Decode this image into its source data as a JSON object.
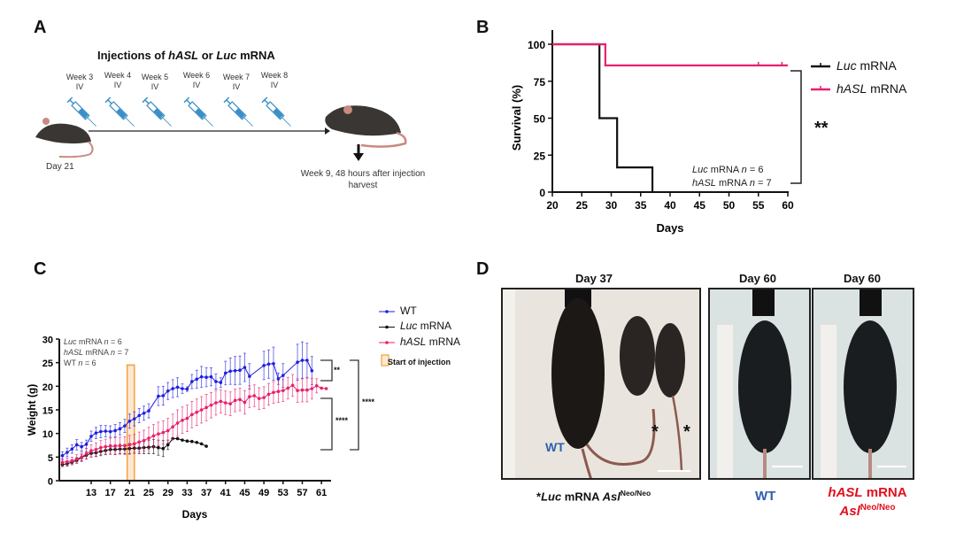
{
  "panels": {
    "a": "A",
    "b": "B",
    "c": "C",
    "d": "D"
  },
  "panel_a": {
    "title": {
      "pre": "Injections of ",
      "gene1": "hASL",
      "mid": " or ",
      "gene2": "Luc",
      "post": " mRNA"
    },
    "weeks": [
      {
        "week": "Week 3",
        "route": "IV"
      },
      {
        "week": "Week 4",
        "route": "IV"
      },
      {
        "week": "Week 5",
        "route": "IV"
      },
      {
        "week": "Week 6",
        "route": "IV"
      },
      {
        "week": "Week 7",
        "route": "IV"
      },
      {
        "week": "Week 8",
        "route": "IV"
      }
    ],
    "start_label": "Day 21",
    "end_label_1": "Week 9, 48 hours after injection",
    "end_label_2": "harvest",
    "colors": {
      "syringe": "#3b8fc7",
      "mouse": "#3a3633",
      "tail": "#c98a80"
    }
  },
  "panel_d": {
    "titles": [
      "Day 37",
      "Day 60",
      "Day 60"
    ],
    "wt_in_photo": "WT",
    "asterisk": "*",
    "caption_luc": {
      "star": "*",
      "gene": "Luc",
      "mid": " mRNA ",
      "allele": "Asl",
      "sup": "Neo/Neo"
    },
    "caption_wt": "WT",
    "caption_hasl": {
      "gene": "hASL",
      "mid": " mRNA",
      "allele": "Asl",
      "sup": "Neo/Neo"
    },
    "colors": {
      "wt": "#2e5fb0",
      "hasl": "#e0101e"
    }
  },
  "chart_data": [
    {
      "type": "line",
      "subtype": "kaplan-meier",
      "xlabel": "Days",
      "ylabel": "Survival (%)",
      "xlim": [
        20,
        60
      ],
      "ylim": [
        0,
        100
      ],
      "xticks": [
        20,
        25,
        30,
        35,
        40,
        45,
        50,
        55,
        60
      ],
      "yticks": [
        0,
        25,
        50,
        75,
        100
      ],
      "legend_position": "right",
      "series": [
        {
          "name": "Luc mRNA",
          "gene": "Luc",
          "suffix": " mRNA",
          "color": "#111111",
          "steps": [
            [
              20,
              100
            ],
            [
              28,
              100
            ],
            [
              28,
              50
            ],
            [
              31,
              50
            ],
            [
              31,
              16.7
            ],
            [
              37,
              16.7
            ],
            [
              37,
              0
            ]
          ],
          "censored": []
        },
        {
          "name": "hASL mRNA",
          "gene": "hASL",
          "suffix": " mRNA",
          "color": "#e8206e",
          "steps": [
            [
              20,
              100
            ],
            [
              29,
              100
            ],
            [
              29,
              85.7
            ],
            [
              60,
              85.7
            ]
          ],
          "censored": [
            55,
            59
          ]
        }
      ],
      "annotations": {
        "n_lines": [
          {
            "gene": "Luc",
            "mid": " mRNA ",
            "n": "n",
            "eq": " = 6"
          },
          {
            "gene": "hASL",
            "mid": " mRNA ",
            "n": "n",
            "eq": " = 7"
          }
        ],
        "significance": "**"
      }
    },
    {
      "type": "line",
      "xlabel": "Days",
      "ylabel": "Weight (g)",
      "xlim": [
        6.5,
        63
      ],
      "ylim": [
        0,
        30
      ],
      "xticks": [
        13,
        17,
        21,
        25,
        29,
        33,
        37,
        41,
        45,
        49,
        53,
        57,
        61
      ],
      "yticks": [
        0,
        5,
        10,
        15,
        20,
        25,
        30
      ],
      "legend_position": "top-right",
      "injection_start": {
        "label": "Start of injection",
        "day_range": [
          20.5,
          22
        ],
        "color": "#f2a23c",
        "fill": "#fde8d2"
      },
      "annotations": {
        "n_lines": [
          {
            "gene": "Luc",
            "mid": " mRNA ",
            "n": "n",
            "eq": " = 6"
          },
          {
            "gene": "hASL",
            "mid": " mRNA ",
            "n": "n",
            "eq": " = 7"
          },
          {
            "gene": "",
            "mid": "WT ",
            "n": "n",
            "eq": " = 6"
          }
        ],
        "sig_wt_hasl": "**",
        "sig_hasl_luc": "****",
        "sig_wt_luc": "****"
      },
      "series": [
        {
          "name": "WT",
          "gene": "",
          "suffix": "WT",
          "color": "#1f1fe0",
          "x": [
            7,
            8,
            9,
            10,
            11,
            12,
            13,
            14,
            15,
            16,
            17,
            18,
            19,
            20,
            21,
            22,
            23,
            24,
            25,
            27,
            28,
            29,
            30,
            31,
            32,
            33,
            34,
            35,
            36,
            37,
            38,
            39,
            40,
            41,
            42,
            43,
            44,
            45,
            46,
            49,
            50,
            51,
            52,
            53,
            56,
            57,
            58,
            59
          ],
          "y": [
            5.3,
            6.0,
            6.7,
            7.6,
            7.2,
            7.7,
            9.4,
            10.1,
            10.4,
            10.5,
            10.4,
            10.6,
            11.0,
            11.6,
            12.6,
            13.1,
            13.8,
            14.3,
            14.8,
            17.9,
            18.0,
            19.0,
            19.5,
            19.8,
            19.5,
            19.4,
            21.0,
            21.5,
            22.0,
            21.9,
            22.0,
            21.0,
            20.8,
            22.8,
            23.2,
            23.3,
            23.4,
            24.0,
            22.1,
            24.4,
            24.7,
            24.8,
            21.6,
            22.3,
            25.1,
            25.5,
            25.5,
            23.3
          ],
          "err": [
            0.8,
            0.9,
            0.9,
            1.1,
            0.9,
            0.9,
            1.1,
            1.2,
            1.3,
            1.2,
            1.2,
            1.3,
            1.3,
            1.4,
            1.5,
            1.5,
            1.5,
            1.5,
            1.5,
            2.0,
            2.0,
            1.8,
            1.9,
            2.0,
            1.0,
            0.5,
            1.5,
            1.9,
            2.2,
            2.0,
            1.9,
            1.6,
            1.0,
            2.5,
            2.8,
            3.0,
            3.0,
            3.0,
            2.7,
            3.0,
            3.0,
            3.5,
            1.2,
            2.5,
            3.8,
            3.9,
            3.6,
            3.0
          ]
        },
        {
          "name": "Luc mRNA",
          "gene": "Luc",
          "suffix": " mRNA",
          "color": "#111111",
          "x": [
            7,
            8,
            9,
            10,
            11,
            12,
            13,
            14,
            15,
            16,
            17,
            18,
            19,
            20,
            21,
            22,
            23,
            24,
            25,
            26,
            27,
            28,
            29,
            30,
            31,
            32,
            33,
            34,
            35,
            36,
            37
          ],
          "y": [
            3.4,
            3.6,
            3.9,
            4.3,
            4.9,
            5.4,
            5.8,
            5.9,
            6.2,
            6.4,
            6.6,
            6.6,
            6.7,
            6.7,
            6.8,
            6.9,
            6.9,
            7.0,
            7.1,
            7.2,
            7.0,
            6.8,
            7.6,
            8.9,
            8.9,
            8.6,
            8.4,
            8.3,
            8.1,
            7.8,
            7.3
          ],
          "err": [
            0.4,
            0.5,
            0.5,
            0.6,
            0.7,
            0.8,
            0.8,
            0.8,
            0.9,
            0.9,
            1.0,
            1.0,
            1.0,
            1.0,
            1.1,
            1.1,
            1.2,
            1.3,
            1.4,
            1.5,
            1.6,
            1.7,
            1.0,
            0,
            0,
            0,
            0,
            0,
            0,
            0,
            0
          ]
        },
        {
          "name": "hASL mRNA",
          "gene": "hASL",
          "suffix": " mRNA",
          "color": "#e8206e",
          "x": [
            7,
            8,
            9,
            10,
            11,
            12,
            13,
            14,
            15,
            16,
            17,
            18,
            19,
            20,
            21,
            22,
            23,
            24,
            25,
            26,
            27,
            28,
            29,
            30,
            31,
            32,
            33,
            34,
            35,
            36,
            37,
            38,
            39,
            40,
            41,
            42,
            43,
            44,
            45,
            46,
            47,
            48,
            49,
            50,
            51,
            52,
            53,
            54,
            55,
            56,
            57,
            58,
            59,
            60,
            61,
            62
          ],
          "y": [
            3.9,
            4.0,
            4.2,
            4.6,
            5.0,
            5.7,
            6.3,
            6.6,
            7.0,
            7.2,
            7.3,
            7.3,
            7.4,
            7.4,
            7.6,
            7.8,
            8.2,
            8.5,
            9.0,
            9.5,
            9.9,
            10.2,
            10.6,
            11.4,
            12.2,
            12.8,
            13.2,
            14.0,
            14.5,
            15.0,
            15.5,
            16.0,
            16.5,
            16.8,
            16.5,
            16.3,
            17.0,
            17.2,
            16.6,
            17.8,
            18.0,
            17.4,
            17.6,
            18.3,
            18.7,
            18.9,
            19.1,
            19.6,
            20.2,
            19.1,
            19.2,
            19.2,
            19.5,
            20.1,
            19.6,
            19.5
          ],
          "err": [
            0.7,
            0.8,
            0.8,
            0.9,
            1.0,
            1.1,
            1.3,
            1.4,
            1.5,
            1.6,
            1.7,
            1.8,
            1.8,
            1.9,
            2.0,
            2.0,
            2.1,
            2.2,
            2.3,
            2.4,
            2.5,
            2.5,
            2.6,
            2.7,
            2.8,
            2.8,
            2.8,
            2.8,
            2.8,
            2.8,
            2.8,
            2.7,
            2.6,
            2.5,
            2.5,
            2.5,
            2.4,
            2.4,
            2.5,
            2.3,
            2.3,
            2.3,
            2.3,
            2.3,
            2.3,
            2.3,
            2.3,
            2.3,
            2.3,
            2.5,
            2.5,
            2.5,
            2.2,
            1.5,
            0,
            0
          ]
        }
      ]
    }
  ]
}
